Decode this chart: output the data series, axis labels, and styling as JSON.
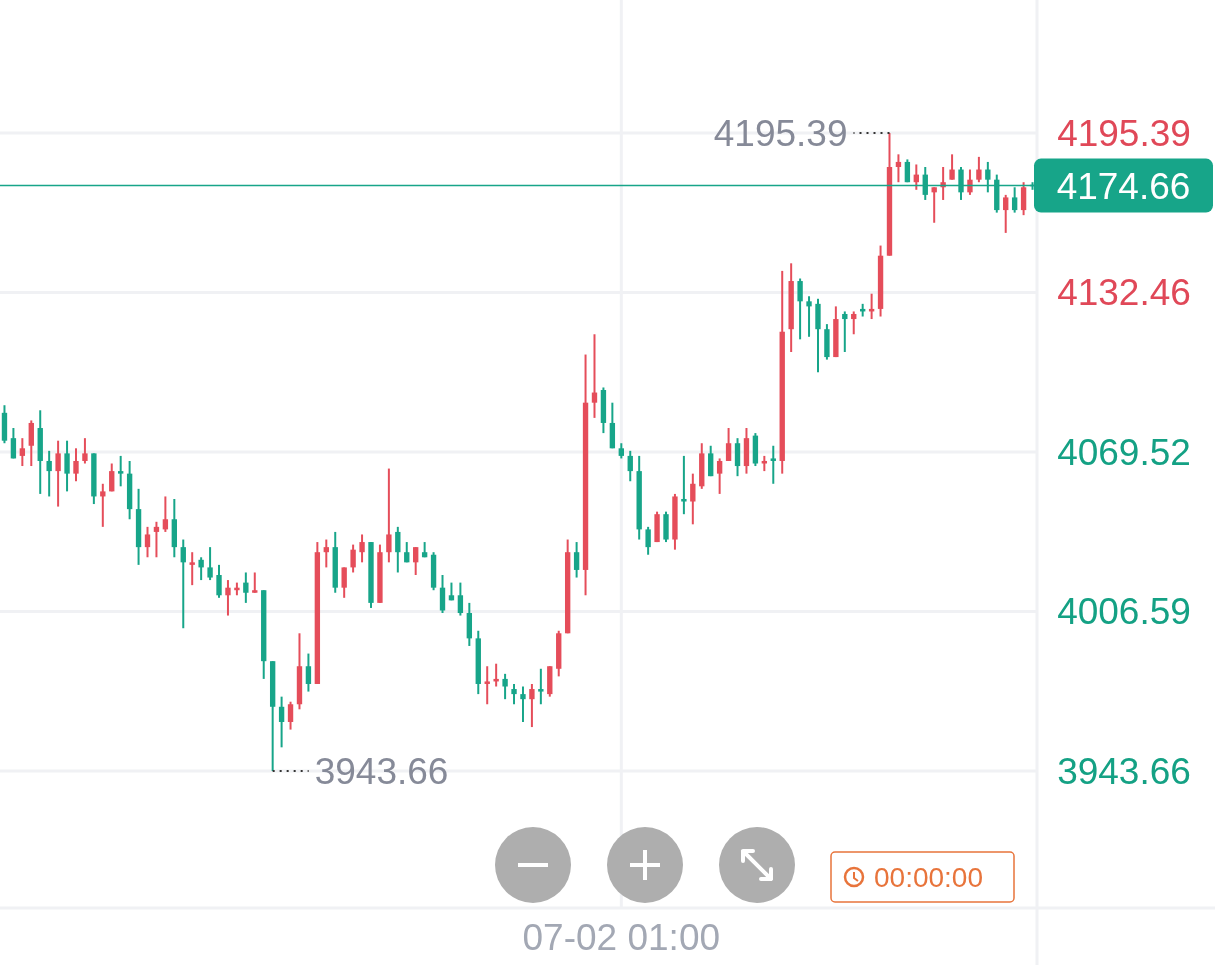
{
  "chart_data": {
    "type": "candlestick",
    "categories": [
      null,
      null,
      null,
      null,
      null,
      null,
      null,
      null,
      null,
      null,
      null,
      null,
      null,
      null,
      null,
      null,
      null,
      null,
      null,
      null,
      null,
      null,
      null,
      null,
      null,
      null,
      null,
      null,
      null,
      null,
      null,
      null,
      null,
      null,
      null,
      null,
      null,
      null,
      null,
      null,
      null,
      null,
      null,
      null,
      null,
      null,
      null,
      null,
      null,
      null,
      null,
      null,
      null,
      null,
      null,
      null,
      null,
      null,
      null,
      null,
      null,
      null,
      null,
      null,
      null,
      null,
      null,
      null,
      null,
      "07-02 01:00",
      null,
      null,
      null,
      null,
      null,
      null,
      null,
      null,
      null,
      null,
      null,
      null,
      null,
      null,
      null,
      null,
      null,
      null,
      null,
      null,
      null,
      null,
      null,
      null,
      null,
      null,
      null,
      null,
      null,
      null,
      null,
      null,
      null,
      null,
      null,
      null,
      null,
      null,
      null,
      null,
      null,
      null,
      null,
      null,
      null,
      null
    ],
    "ohlc": [
      [
        4085,
        4088,
        4073,
        4074
      ],
      [
        4075,
        4079,
        4067,
        4067
      ],
      [
        4068,
        4075,
        4064,
        4071
      ],
      [
        4072,
        4082,
        4064,
        4081
      ],
      [
        4079,
        4086,
        4053,
        4066
      ],
      [
        4066,
        4070,
        4052,
        4062
      ],
      [
        4062,
        4074,
        4048,
        4069
      ],
      [
        4069,
        4074,
        4054,
        4061
      ],
      [
        4061,
        4071,
        4058,
        4066
      ],
      [
        4066,
        4075,
        4065,
        4069
      ],
      [
        4069,
        4069,
        4049,
        4052
      ],
      [
        4052,
        4057,
        4040,
        4054
      ],
      [
        4054,
        4065,
        4054,
        4062
      ],
      [
        4062,
        4068,
        4056,
        4061
      ],
      [
        4061,
        4066,
        4043,
        4047
      ],
      [
        4047,
        4055,
        4025,
        4032
      ],
      [
        4032,
        4040,
        4028,
        4037
      ],
      [
        4038,
        4042,
        4028,
        4040
      ],
      [
        4039,
        4052,
        4038,
        4043
      ],
      [
        4043,
        4051,
        4028,
        4032
      ],
      [
        4032,
        4035,
        4000,
        4026
      ],
      [
        4025,
        4030,
        4017,
        4026
      ],
      [
        4027,
        4028,
        4019,
        4024
      ],
      [
        4024,
        4032,
        4019,
        4020
      ],
      [
        4021,
        4025,
        4012,
        4013
      ],
      [
        4013,
        4019,
        4005,
        4016
      ],
      [
        4015,
        4018,
        4013,
        4016
      ],
      [
        4018,
        4022,
        4010,
        4014
      ],
      [
        4014,
        4022,
        4014,
        4015
      ],
      [
        4015,
        4015,
        3980,
        3987
      ],
      [
        3987,
        3987,
        3943.66,
        3969
      ],
      [
        3969,
        3973,
        3953,
        3963
      ],
      [
        3963,
        3971,
        3960,
        3970
      ],
      [
        3970,
        3998,
        3968,
        3985
      ],
      [
        3985,
        3990,
        3975,
        3978
      ],
      [
        3978,
        4034,
        3978,
        4030
      ],
      [
        4030,
        4035,
        4024,
        4032
      ],
      [
        4032,
        4038,
        4014,
        4016
      ],
      [
        4016,
        4024,
        4012,
        4024
      ],
      [
        4024,
        4033,
        4022,
        4031
      ],
      [
        4030,
        4037,
        4026,
        4034
      ],
      [
        4034,
        4034,
        4008,
        4010
      ],
      [
        4010,
        4033,
        4010,
        4030
      ],
      [
        4030,
        4063,
        4026,
        4037
      ],
      [
        4038,
        4040,
        4022,
        4030
      ],
      [
        4030,
        4034,
        4026,
        4026
      ],
      [
        4026,
        4032,
        4021,
        4032
      ],
      [
        4030,
        4034,
        4028,
        4028
      ],
      [
        4029,
        4030,
        4015,
        4016
      ],
      [
        4016,
        4021,
        4006,
        4007
      ],
      [
        4013,
        4018,
        4011,
        4011
      ],
      [
        4013,
        4018,
        4005,
        4006
      ],
      [
        4006,
        4010,
        3993,
        3996
      ],
      [
        3996,
        3999,
        3974,
        3978
      ],
      [
        3978,
        3985,
        3970,
        3979
      ],
      [
        3979,
        3986,
        3977,
        3980
      ],
      [
        3980,
        3982,
        3972,
        3977
      ],
      [
        3976,
        3978,
        3970,
        3974
      ],
      [
        3974,
        3977,
        3963,
        3972
      ],
      [
        3972,
        3978,
        3961,
        3976
      ],
      [
        3976,
        3984,
        3970,
        3975
      ],
      [
        3974,
        3985,
        3973,
        3985
      ],
      [
        3984,
        3999,
        3981,
        3998
      ],
      [
        3998,
        4035,
        3998,
        4030
      ],
      [
        4030,
        4034,
        4020,
        4023
      ],
      [
        4023,
        4108,
        4013,
        4089
      ],
      [
        4089,
        4116,
        4083,
        4093
      ],
      [
        4094,
        4095,
        4077,
        4081
      ],
      [
        4081,
        4089,
        4071,
        4071
      ],
      [
        4071,
        4073,
        4067,
        4068
      ],
      [
        4068,
        4070,
        4058,
        4062
      ],
      [
        4062,
        4068,
        4035,
        4039
      ],
      [
        4039,
        4040,
        4029,
        4032
      ],
      [
        4034,
        4046,
        4034,
        4045
      ],
      [
        4045,
        4046,
        4034,
        4035
      ],
      [
        4035,
        4053,
        4031,
        4052
      ],
      [
        4051,
        4068,
        4045,
        4050
      ],
      [
        4050,
        4061,
        4041,
        4057
      ],
      [
        4056,
        4073,
        4055,
        4069
      ],
      [
        4069,
        4072,
        4060,
        4060
      ],
      [
        4061,
        4067,
        4053,
        4066
      ],
      [
        4066,
        4079,
        4066,
        4073
      ],
      [
        4073,
        4075,
        4060,
        4064
      ],
      [
        4064,
        4079,
        4061,
        4075
      ],
      [
        4076,
        4077,
        4064,
        4065
      ],
      [
        4065,
        4068,
        4062,
        4066
      ],
      [
        4067,
        4072,
        4057,
        4066
      ],
      [
        4066,
        4141,
        4061,
        4117
      ],
      [
        4118,
        4144,
        4109,
        4137
      ],
      [
        4137,
        4138,
        4114,
        4129
      ],
      [
        4129,
        4131,
        4115,
        4127
      ],
      [
        4128,
        4130,
        4101,
        4118
      ],
      [
        4118,
        4120,
        4106,
        4107
      ],
      [
        4107,
        4127,
        4107,
        4122
      ],
      [
        4124,
        4125,
        4109,
        4122
      ],
      [
        4122,
        4125,
        4116,
        4124
      ],
      [
        4126,
        4128,
        4123,
        4125
      ],
      [
        4125,
        4132,
        4122,
        4126
      ],
      [
        4126,
        4151,
        4123,
        4147
      ],
      [
        4147,
        4195.39,
        4147,
        4182
      ],
      [
        4182,
        4187,
        4176,
        4184
      ],
      [
        4184,
        4185,
        4176,
        4176
      ],
      [
        4176,
        4183,
        4173,
        4179
      ],
      [
        4179,
        4182,
        4169,
        4171
      ],
      [
        4172,
        4174,
        4160,
        4174
      ],
      [
        4174,
        4182,
        4169,
        4176
      ],
      [
        4177,
        4187,
        4177,
        4181
      ],
      [
        4181,
        4182,
        4169,
        4172
      ],
      [
        4172,
        4181,
        4171,
        4177
      ],
      [
        4177,
        4186,
        4176,
        4181
      ],
      [
        4181,
        4184,
        4172,
        4177
      ],
      [
        4177,
        4179,
        4164,
        4165
      ],
      [
        4165,
        4171,
        4156,
        4170
      ],
      [
        4170,
        4174,
        4164,
        4165
      ],
      [
        4165,
        4176,
        4163,
        4174
      ],
      [
        4175,
        4176,
        4173,
        4174.66
      ]
    ],
    "colors": [
      "#17a589",
      "#17a589",
      "#e54d5a",
      "#e54d5a",
      "#17a589",
      "#17a589",
      "#e54d5a",
      "#17a589",
      "#e54d5a",
      "#e54d5a",
      "#17a589",
      "#e54d5a",
      "#e54d5a",
      "#17a589",
      "#17a589",
      "#17a589",
      "#e54d5a",
      "#e54d5a",
      "#e54d5a",
      "#17a589",
      "#17a589",
      "#e54d5a",
      "#17a589",
      "#17a589",
      "#17a589",
      "#e54d5a",
      "#e54d5a",
      "#17a589",
      "#e54d5a",
      "#17a589",
      "#17a589",
      "#17a589",
      "#e54d5a",
      "#e54d5a",
      "#17a589",
      "#e54d5a",
      "#e54d5a",
      "#17a589",
      "#e54d5a",
      "#e54d5a",
      "#e54d5a",
      "#17a589",
      "#e54d5a",
      "#e54d5a",
      "#17a589",
      "#17a589",
      "#e54d5a",
      "#17a589",
      "#17a589",
      "#17a589",
      "#17a589",
      "#17a589",
      "#17a589",
      "#17a589",
      "#e54d5a",
      "#e54d5a",
      "#17a589",
      "#17a589",
      "#17a589",
      "#e54d5a",
      "#17a589",
      "#e54d5a",
      "#e54d5a",
      "#e54d5a",
      "#17a589",
      "#e54d5a",
      "#e54d5a",
      "#17a589",
      "#17a589",
      "#17a589",
      "#17a589",
      "#17a589",
      "#17a589",
      "#e54d5a",
      "#17a589",
      "#e54d5a",
      "#17a589",
      "#e54d5a",
      "#e54d5a",
      "#17a589",
      "#e54d5a",
      "#e54d5a",
      "#17a589",
      "#e54d5a",
      "#17a589",
      "#e54d5a",
      "#17a589",
      "#e54d5a",
      "#e54d5a",
      "#17a589",
      "#17a589",
      "#17a589",
      "#17a589",
      "#e54d5a",
      "#17a589",
      "#e54d5a",
      "#17a589",
      "#e54d5a",
      "#e54d5a",
      "#e54d5a",
      "#e54d5a",
      "#17a589",
      "#e54d5a",
      "#17a589",
      "#e54d5a",
      "#e54d5a",
      "#e54d5a",
      "#17a589",
      "#e54d5a",
      "#e54d5a",
      "#17a589",
      "#17a589",
      "#e54d5a",
      "#17a589",
      "#e54d5a",
      "#17a589"
    ],
    "ylim": [
      3889.6,
      4247.9
    ],
    "yticks": [
      3943.66,
      4006.59,
      4069.52,
      4132.46,
      4195.39
    ],
    "grid": true,
    "ref_lines": [
      {
        "axis": "y",
        "value": 4174.66,
        "label": "4174.66",
        "color": "#17a589"
      }
    ],
    "annotations": [
      "4195.39",
      "3943.66",
      "00:00:00"
    ]
  }
}
